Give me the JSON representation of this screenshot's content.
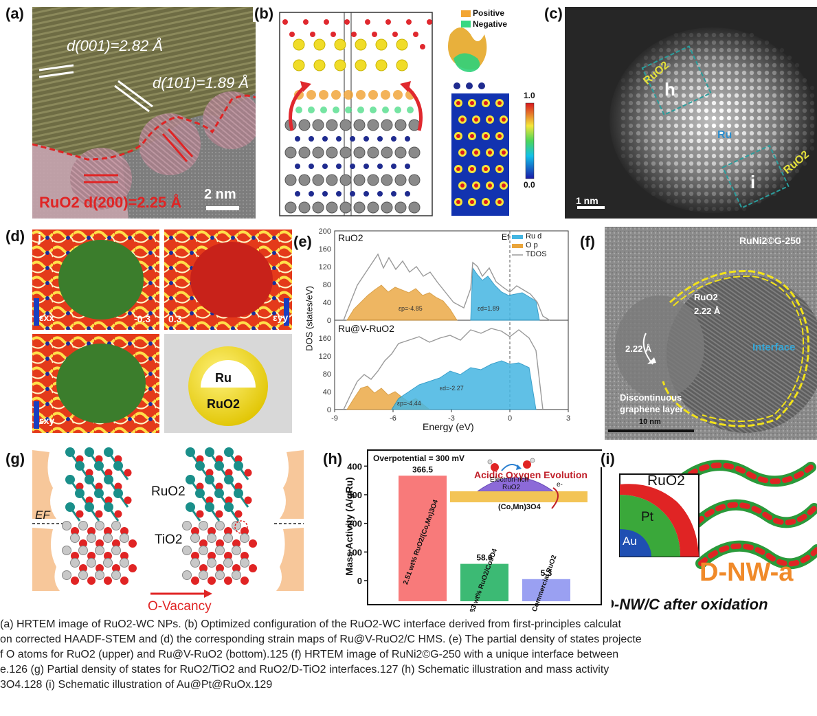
{
  "panels": {
    "a": {
      "label": "(a)",
      "d001": "d(001)=2.82 Å",
      "d101": "d(101)=1.89 Å",
      "d200": "RuO2 d(200)=2.25 Å",
      "scale": "2 nm"
    },
    "b": {
      "label": "(b)",
      "legend_positive": "Positive",
      "legend_negative": "Negative",
      "colorbar_max": "1.0",
      "colorbar_min": "0.0"
    },
    "c": {
      "label": "(c)",
      "ruo2_top": "RuO2",
      "box_h": "h",
      "ru": "Ru",
      "ruo2_right": "RuO2",
      "box_i": "i",
      "scale": "1 nm"
    },
    "d": {
      "label": "(d)",
      "corner": "j",
      "exx": "εxx",
      "eyy": "εyy",
      "exy": "εxy",
      "val1": "-0.3",
      "val2": "0.3",
      "core": "Ru",
      "shell": "RuO2"
    },
    "e": {
      "label": "(e)",
      "top_label": "RuO2",
      "bottom_label": "Ru@V-RuO2",
      "ef": "Ef",
      "legend": [
        "Ru d",
        "O p",
        "TDOS"
      ],
      "ylabel": "DOS (states/eV)",
      "xlabel": "Energy (eV)",
      "xticks": [
        "-9",
        "-6",
        "-3",
        "0",
        "3"
      ],
      "yticks_top": [
        "0",
        "40",
        "80",
        "120",
        "160",
        "200"
      ],
      "yticks_bottom": [
        "0",
        "40",
        "80",
        "120",
        "160"
      ],
      "top_ann1": "εp=-4.85",
      "top_ann2": "εd=1.89",
      "bottom_ann1": "εd=-2.27",
      "bottom_ann2": "εp=-4.44"
    },
    "f": {
      "label": "(f)",
      "title": "RuNi2©G-250",
      "ruo2": "RuO2",
      "d1": "2.22 Å",
      "d2": "2.22 Å",
      "interface": "Interface",
      "graphene1": "Discontinuous",
      "graphene2": "graphene layer",
      "scale": "10 nm"
    },
    "g": {
      "label": "(g)",
      "ruo2": "RuO2",
      "tio2": "TiO2",
      "ef": "EF",
      "ovac": "O-Vacancy"
    },
    "h": {
      "label": "(h)",
      "overpotential": "Overpotential = 300 mV",
      "title": "Acidic Oxygen Evolution",
      "ylabel": "Mass Activity (A/gRu)",
      "electron1": "Electron-rich",
      "electron2": "RuO2",
      "substrate": "(Co,Mn)3O4",
      "eminus": "e-",
      "yticks": [
        "0",
        "100",
        "200",
        "300",
        "400"
      ]
    },
    "i": {
      "label": "(i)",
      "ruo2": "RuO2",
      "pt": "Pt",
      "au": "Au",
      "dnwa": "D-NW-a",
      "subtitle": "D-NW/C after oxidation"
    }
  },
  "chart_data": {
    "type": "bar",
    "categories": [
      "2.51 wt% RuO2/(Co,Mn)3O4",
      "2.83 wt% RuO2/Co3O4",
      "Commercial RuO2"
    ],
    "values": [
      366.5,
      58.6,
      5.3
    ],
    "value_labels": [
      "366.5",
      "58.6",
      "5.3"
    ],
    "colors": [
      "#f87a7a",
      "#3cba74",
      "#9aa0f2"
    ],
    "ylabel": "Mass Activity (A/gRu)",
    "ylim": [
      -60,
      420
    ]
  },
  "caption": {
    "line1": "(a) HRTEM image of RuO2-WC NPs. (b) Optimized configuration of the RuO2-WC interface derived from first-principles calculat",
    "line2": "on corrected HAADF-STEM and (d) the corresponding strain maps of Ru@V-RuO2/C HMS. (e) The partial density of states projecte",
    "line3": "f O atoms for RuO2 (upper) and Ru@V-RuO2 (bottom).125 (f) HRTEM image of RuNi2©G-250 with a unique interface between",
    "line4": "e.126 (g) Partial density of states for RuO2/TiO2 and RuO2/D-TiO2 interfaces.127 (h) Schematic illustration and mass activity",
    "line5": "3O4.128 (i) Schematic illustration of Au@Pt@RuOx.129"
  }
}
